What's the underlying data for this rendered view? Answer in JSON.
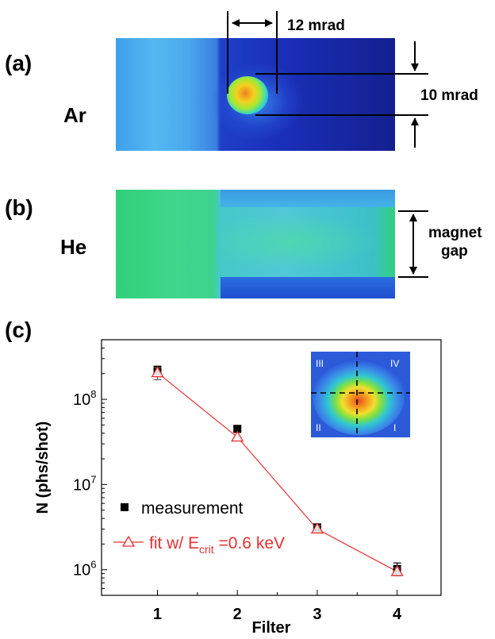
{
  "panels": {
    "a": {
      "label": "(a)",
      "gas": "Ar",
      "h_dim": "12 mrad",
      "v_dim": "10 mrad"
    },
    "b": {
      "label": "(b)",
      "gas": "He",
      "gap_line1": "magnet",
      "gap_line2": "gap"
    },
    "c": {
      "label": "(c)"
    }
  },
  "colors": {
    "fit": "#e83030",
    "measurement": "#000000",
    "axis": "#000000"
  },
  "chart_data": {
    "type": "scatter",
    "xlabel": "Filter",
    "ylabel": "N (phs/shot)",
    "x_ticks": [
      "1",
      "2",
      "3",
      "4"
    ],
    "xlim": [
      0.3,
      4.55
    ],
    "ylim": [
      500000,
      500000000
    ],
    "y_scale": "log",
    "y_ticks": [
      {
        "value": 1000000,
        "base": "10",
        "exp": "6"
      },
      {
        "value": 10000000,
        "base": "10",
        "exp": "7"
      },
      {
        "value": 100000000,
        "base": "10",
        "exp": "8"
      }
    ],
    "series": [
      {
        "name": "measurement",
        "marker": "filled-square",
        "points": [
          {
            "x": 1,
            "y": 220000000,
            "err_lo": 195000000,
            "err_hi": 245000000
          },
          {
            "x": 2,
            "y": 45000000,
            "err_lo": 41000000,
            "err_hi": 49000000
          },
          {
            "x": 3,
            "y": 3100000,
            "err_lo": 2750000,
            "err_hi": 3450000
          },
          {
            "x": 4,
            "y": 1020000,
            "err_lo": 900000,
            "err_hi": 1200000
          }
        ]
      },
      {
        "name": "fit w/ E",
        "name_sub": "crit",
        "name_tail": " =0.6 keV",
        "marker": "open-triangle",
        "line": true,
        "points": [
          {
            "x": 1,
            "y": 205000000,
            "err_lo": 170000000,
            "err_hi": 235000000
          },
          {
            "x": 2,
            "y": 36000000
          },
          {
            "x": 3,
            "y": 3000000,
            "err_lo": 2700000,
            "err_hi": 3300000
          },
          {
            "x": 4,
            "y": 950000,
            "err_lo": 850000,
            "err_hi": 1050000
          }
        ]
      }
    ],
    "legend_position": "lower-left",
    "inset": {
      "quadrants": [
        "III",
        "IV",
        "II",
        "I"
      ]
    }
  }
}
